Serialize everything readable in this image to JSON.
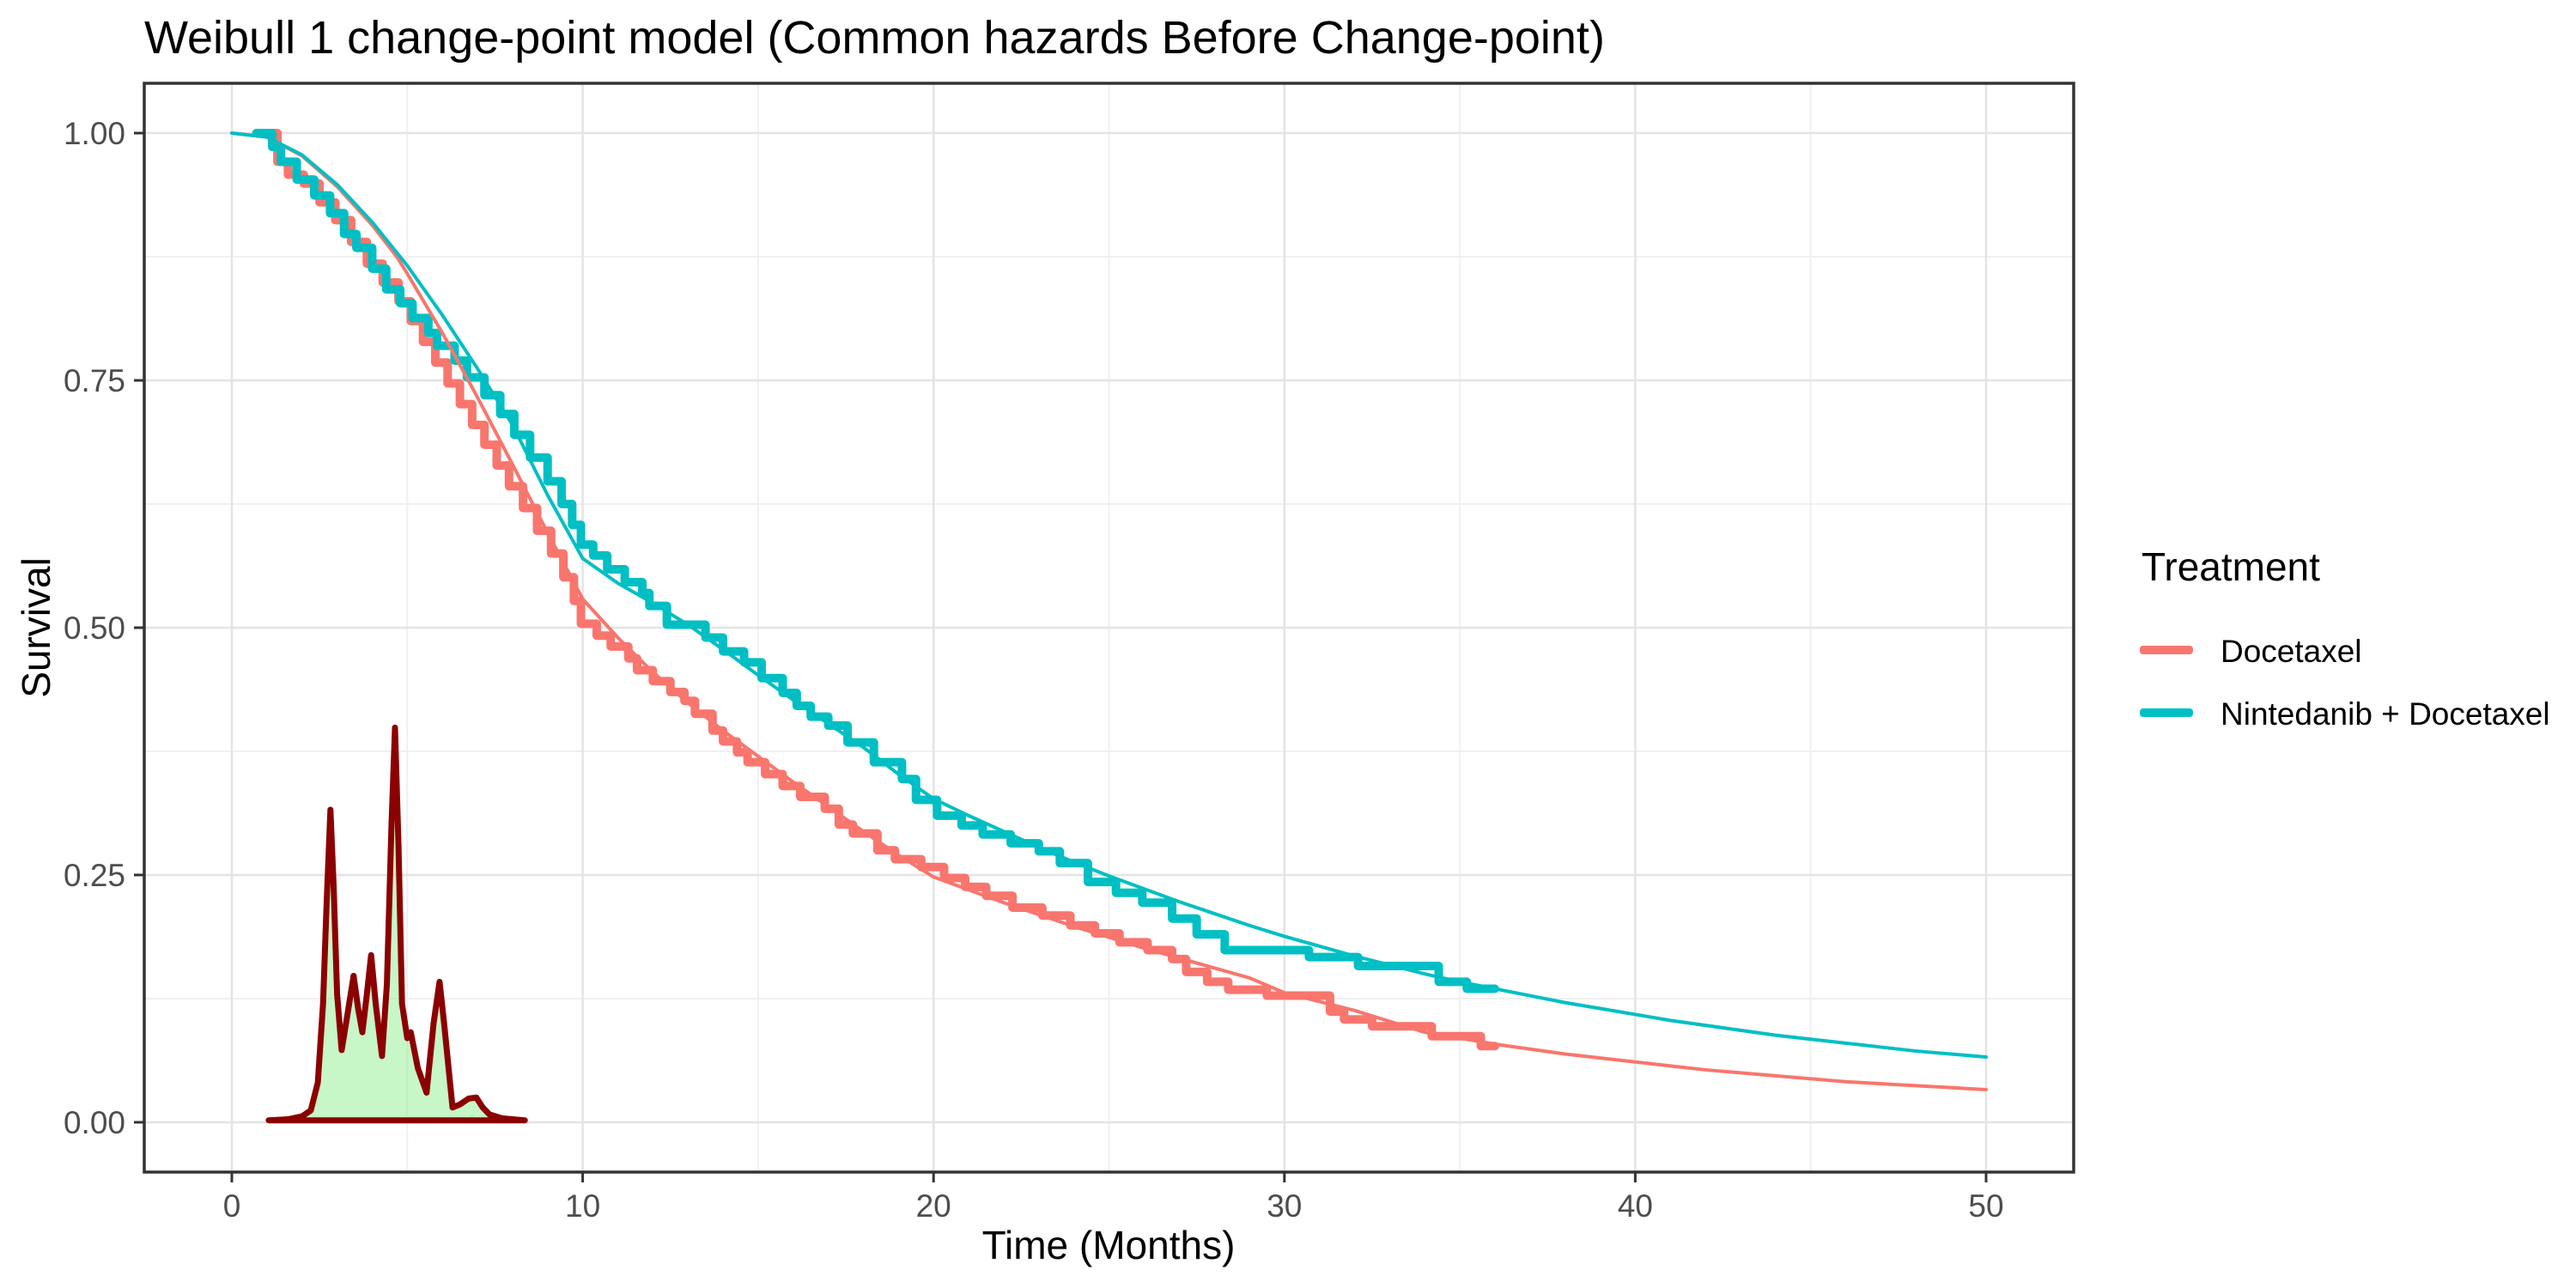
{
  "title": "Weibull 1 change-point model (Common hazards Before Change-point)",
  "axes": {
    "x": {
      "label": "Time (Months)",
      "tick_labels": [
        "0",
        "10",
        "20",
        "30",
        "40",
        "50"
      ],
      "tick_values": [
        0,
        10,
        20,
        30,
        40,
        50
      ],
      "minor_tick_values": [
        5,
        15,
        25,
        35,
        45
      ],
      "range": [
        0,
        50
      ]
    },
    "y": {
      "label": "Survival",
      "tick_labels": [
        "0.00",
        "0.25",
        "0.50",
        "0.75",
        "1.00"
      ],
      "tick_values": [
        0,
        0.25,
        0.5,
        0.75,
        1.0
      ],
      "minor_tick_values": [
        0.125,
        0.375,
        0.625,
        0.875
      ],
      "range": [
        0,
        1
      ]
    }
  },
  "legend": {
    "title": "Treatment",
    "items": [
      {
        "label": "Docetaxel",
        "color": "#F8766D"
      },
      {
        "label": "Nintedanib + Docetaxel",
        "color": "#00BFC4"
      }
    ]
  },
  "colors": {
    "docetaxel": "#F8766D",
    "nintedanib_docetaxel": "#00BFC4",
    "density_line": "#8B0000",
    "density_fill": "rgba(144,238,144,0.5)",
    "grid_major": "#E4E4E4",
    "grid_minor": "#F0F0F0",
    "panel_border": "#333333",
    "tick_mark": "#333333",
    "tick_text": "#4D4D4D"
  },
  "chart_data": {
    "type": "line",
    "title": "Weibull 1 change-point model (Common hazards Before Change-point)",
    "xlabel": "Time (Months)",
    "ylabel": "Survival",
    "xlim": [
      0,
      50
    ],
    "ylim": [
      0,
      1
    ],
    "grid": "on",
    "legend_position": "right",
    "series": [
      {
        "name": "Docetaxel Kaplan-Meier",
        "render": "step",
        "color": "#F8766D",
        "linewidth": 10,
        "end_t": 36.0,
        "points": [
          [
            0.7,
            1.0
          ],
          [
            1.3,
            0.971
          ],
          [
            1.6,
            0.958
          ],
          [
            2.05,
            0.949
          ],
          [
            2.5,
            0.93
          ],
          [
            2.95,
            0.912
          ],
          [
            3.4,
            0.89
          ],
          [
            3.85,
            0.868
          ],
          [
            4.3,
            0.849
          ],
          [
            4.75,
            0.83
          ],
          [
            5.1,
            0.81
          ],
          [
            5.45,
            0.789
          ],
          [
            5.8,
            0.768
          ],
          [
            6.15,
            0.747
          ],
          [
            6.5,
            0.726
          ],
          [
            6.85,
            0.705
          ],
          [
            7.2,
            0.685
          ],
          [
            7.55,
            0.664
          ],
          [
            7.9,
            0.643
          ],
          [
            8.3,
            0.621
          ],
          [
            8.7,
            0.598
          ],
          [
            9.1,
            0.575
          ],
          [
            9.45,
            0.551
          ],
          [
            9.75,
            0.527
          ],
          [
            9.95,
            0.504
          ],
          [
            10.4,
            0.492
          ],
          [
            10.8,
            0.481
          ],
          [
            11.3,
            0.469
          ],
          [
            11.55,
            0.457
          ],
          [
            12.0,
            0.446
          ],
          [
            12.5,
            0.435
          ],
          [
            12.9,
            0.426
          ],
          [
            13.2,
            0.413
          ],
          [
            13.7,
            0.396
          ],
          [
            14.0,
            0.385
          ],
          [
            14.4,
            0.374
          ],
          [
            14.7,
            0.364
          ],
          [
            15.2,
            0.352
          ],
          [
            15.7,
            0.34
          ],
          [
            16.2,
            0.329
          ],
          [
            16.9,
            0.317
          ],
          [
            17.3,
            0.301
          ],
          [
            17.7,
            0.292
          ],
          [
            18.4,
            0.275
          ],
          [
            18.9,
            0.266
          ],
          [
            19.65,
            0.258
          ],
          [
            20.3,
            0.247
          ],
          [
            20.9,
            0.238
          ],
          [
            21.5,
            0.229
          ],
          [
            22.25,
            0.217
          ],
          [
            23.1,
            0.209
          ],
          [
            23.9,
            0.199
          ],
          [
            24.6,
            0.191
          ],
          [
            25.3,
            0.182
          ],
          [
            26.1,
            0.174
          ],
          [
            26.8,
            0.165
          ],
          [
            27.2,
            0.152
          ],
          [
            27.8,
            0.142
          ],
          [
            28.4,
            0.134
          ],
          [
            29.5,
            0.128
          ],
          [
            31.3,
            0.112
          ],
          [
            31.7,
            0.104
          ],
          [
            32.5,
            0.097
          ],
          [
            34.2,
            0.087
          ],
          [
            35.6,
            0.077
          ]
        ]
      },
      {
        "name": "Nintedanib + Docetaxel Kaplan-Meier",
        "render": "step",
        "color": "#00BFC4",
        "linewidth": 10,
        "end_t": 36.0,
        "points": [
          [
            0.7,
            1.0
          ],
          [
            1.15,
            0.986
          ],
          [
            1.4,
            0.971
          ],
          [
            1.85,
            0.953
          ],
          [
            2.35,
            0.937
          ],
          [
            2.8,
            0.919
          ],
          [
            3.2,
            0.898
          ],
          [
            3.55,
            0.884
          ],
          [
            4.0,
            0.863
          ],
          [
            4.4,
            0.842
          ],
          [
            4.8,
            0.828
          ],
          [
            5.15,
            0.813
          ],
          [
            5.6,
            0.798
          ],
          [
            5.85,
            0.785
          ],
          [
            6.35,
            0.77
          ],
          [
            6.7,
            0.753
          ],
          [
            7.2,
            0.735
          ],
          [
            7.65,
            0.716
          ],
          [
            8.05,
            0.695
          ],
          [
            8.5,
            0.672
          ],
          [
            9.0,
            0.648
          ],
          [
            9.4,
            0.625
          ],
          [
            9.7,
            0.604
          ],
          [
            9.95,
            0.584
          ],
          [
            10.3,
            0.573
          ],
          [
            10.7,
            0.559
          ],
          [
            11.2,
            0.546
          ],
          [
            11.7,
            0.535
          ],
          [
            11.9,
            0.522
          ],
          [
            12.4,
            0.503
          ],
          [
            13.5,
            0.49
          ],
          [
            14.0,
            0.476
          ],
          [
            14.6,
            0.465
          ],
          [
            15.1,
            0.449
          ],
          [
            15.7,
            0.434
          ],
          [
            16.1,
            0.421
          ],
          [
            16.5,
            0.41
          ],
          [
            17.0,
            0.401
          ],
          [
            17.55,
            0.384
          ],
          [
            18.3,
            0.364
          ],
          [
            19.1,
            0.347
          ],
          [
            19.5,
            0.326
          ],
          [
            20.1,
            0.31
          ],
          [
            20.8,
            0.3
          ],
          [
            21.4,
            0.291
          ],
          [
            22.2,
            0.282
          ],
          [
            23.0,
            0.274
          ],
          [
            23.6,
            0.262
          ],
          [
            24.4,
            0.243
          ],
          [
            25.2,
            0.232
          ],
          [
            25.95,
            0.222
          ],
          [
            26.8,
            0.206
          ],
          [
            27.5,
            0.19
          ],
          [
            28.3,
            0.174
          ],
          [
            30.7,
            0.167
          ],
          [
            32.1,
            0.158
          ],
          [
            34.4,
            0.142
          ],
          [
            35.2,
            0.135
          ]
        ]
      },
      {
        "name": "Docetaxel Weibull fit",
        "render": "smooth",
        "color": "#F8766D",
        "linewidth": 4,
        "points": [
          [
            0,
            1.0
          ],
          [
            1,
            0.996
          ],
          [
            2,
            0.977
          ],
          [
            3,
            0.946
          ],
          [
            4,
            0.907
          ],
          [
            4.7,
            0.875
          ],
          [
            5,
            0.858
          ],
          [
            6,
            0.798
          ],
          [
            7,
            0.733
          ],
          [
            8,
            0.665
          ],
          [
            9,
            0.596
          ],
          [
            10,
            0.529
          ],
          [
            11,
            0.49
          ],
          [
            12,
            0.455
          ],
          [
            13,
            0.424
          ],
          [
            14,
            0.396
          ],
          [
            15,
            0.37
          ],
          [
            16,
            0.344
          ],
          [
            17,
            0.319
          ],
          [
            18,
            0.294
          ],
          [
            19,
            0.27
          ],
          [
            20,
            0.248
          ],
          [
            21,
            0.235
          ],
          [
            22,
            0.222
          ],
          [
            23,
            0.21
          ],
          [
            24,
            0.198
          ],
          [
            25,
            0.187
          ],
          [
            26,
            0.176
          ],
          [
            27,
            0.166
          ],
          [
            28,
            0.156
          ],
          [
            29,
            0.146
          ],
          [
            30,
            0.131
          ],
          [
            31,
            0.122
          ],
          [
            32,
            0.113
          ],
          [
            33,
            0.102
          ],
          [
            34,
            0.091
          ],
          [
            35,
            0.085
          ],
          [
            36,
            0.079
          ],
          [
            37,
            0.074
          ],
          [
            38,
            0.069
          ],
          [
            39,
            0.065
          ],
          [
            40,
            0.061
          ],
          [
            41,
            0.057
          ],
          [
            42,
            0.053
          ],
          [
            43,
            0.05
          ],
          [
            44,
            0.047
          ],
          [
            45,
            0.044
          ],
          [
            46,
            0.041
          ],
          [
            47,
            0.039
          ],
          [
            48,
            0.037
          ],
          [
            49,
            0.035
          ],
          [
            50,
            0.033
          ]
        ]
      },
      {
        "name": "Nintedanib + Docetaxel Weibull fit",
        "render": "smooth",
        "color": "#00BFC4",
        "linewidth": 4,
        "points": [
          [
            0,
            1.0
          ],
          [
            1,
            0.996
          ],
          [
            2,
            0.978
          ],
          [
            3,
            0.948
          ],
          [
            4,
            0.91
          ],
          [
            5,
            0.866
          ],
          [
            6,
            0.816
          ],
          [
            7,
            0.762
          ],
          [
            8,
            0.705
          ],
          [
            9,
            0.634
          ],
          [
            10,
            0.57
          ],
          [
            11,
            0.545
          ],
          [
            12,
            0.525
          ],
          [
            13,
            0.503
          ],
          [
            14,
            0.478
          ],
          [
            15,
            0.452
          ],
          [
            16,
            0.427
          ],
          [
            17,
            0.403
          ],
          [
            18,
            0.379
          ],
          [
            19,
            0.352
          ],
          [
            20,
            0.327
          ],
          [
            21,
            0.31
          ],
          [
            22,
            0.294
          ],
          [
            23,
            0.278
          ],
          [
            24,
            0.263
          ],
          [
            25,
            0.249
          ],
          [
            26,
            0.236
          ],
          [
            27,
            0.223
          ],
          [
            28,
            0.211
          ],
          [
            29,
            0.199
          ],
          [
            30,
            0.188
          ],
          [
            31,
            0.178
          ],
          [
            32,
            0.168
          ],
          [
            33,
            0.159
          ],
          [
            34,
            0.15
          ],
          [
            35,
            0.142
          ],
          [
            36,
            0.135
          ],
          [
            37,
            0.128
          ],
          [
            38,
            0.121
          ],
          [
            39,
            0.115
          ],
          [
            40,
            0.109
          ],
          [
            41,
            0.103
          ],
          [
            42,
            0.098
          ],
          [
            43,
            0.093
          ],
          [
            44,
            0.088
          ],
          [
            45,
            0.084
          ],
          [
            46,
            0.08
          ],
          [
            47,
            0.076
          ],
          [
            48,
            0.072
          ],
          [
            49,
            0.069
          ],
          [
            50,
            0.066
          ]
        ]
      },
      {
        "name": "Change-point posterior density (inset)",
        "render": "area",
        "line_color": "#8B0000",
        "fill_color": "rgba(144,238,144,0.5)",
        "linewidth": 7,
        "points": [
          [
            1.05,
            0.002
          ],
          [
            1.6,
            0.003
          ],
          [
            2.0,
            0.006
          ],
          [
            2.25,
            0.012
          ],
          [
            2.45,
            0.04
          ],
          [
            2.6,
            0.12
          ],
          [
            2.7,
            0.22
          ],
          [
            2.81,
            0.316
          ],
          [
            2.9,
            0.24
          ],
          [
            3.0,
            0.13
          ],
          [
            3.13,
            0.073
          ],
          [
            3.3,
            0.11
          ],
          [
            3.47,
            0.148
          ],
          [
            3.6,
            0.115
          ],
          [
            3.72,
            0.091
          ],
          [
            3.85,
            0.13
          ],
          [
            3.97,
            0.169
          ],
          [
            4.1,
            0.12
          ],
          [
            4.28,
            0.067
          ],
          [
            4.42,
            0.14
          ],
          [
            4.55,
            0.3
          ],
          [
            4.65,
            0.399
          ],
          [
            4.75,
            0.28
          ],
          [
            4.85,
            0.12
          ],
          [
            5.0,
            0.085
          ],
          [
            5.1,
            0.091
          ],
          [
            5.3,
            0.055
          ],
          [
            5.55,
            0.03
          ],
          [
            5.75,
            0.1
          ],
          [
            5.92,
            0.142
          ],
          [
            6.05,
            0.1
          ],
          [
            6.29,
            0.015
          ],
          [
            6.5,
            0.018
          ],
          [
            6.75,
            0.024
          ],
          [
            6.97,
            0.025
          ],
          [
            7.15,
            0.015
          ],
          [
            7.34,
            0.008
          ],
          [
            7.7,
            0.004
          ],
          [
            8.0,
            0.003
          ],
          [
            8.35,
            0.002
          ]
        ]
      }
    ]
  }
}
